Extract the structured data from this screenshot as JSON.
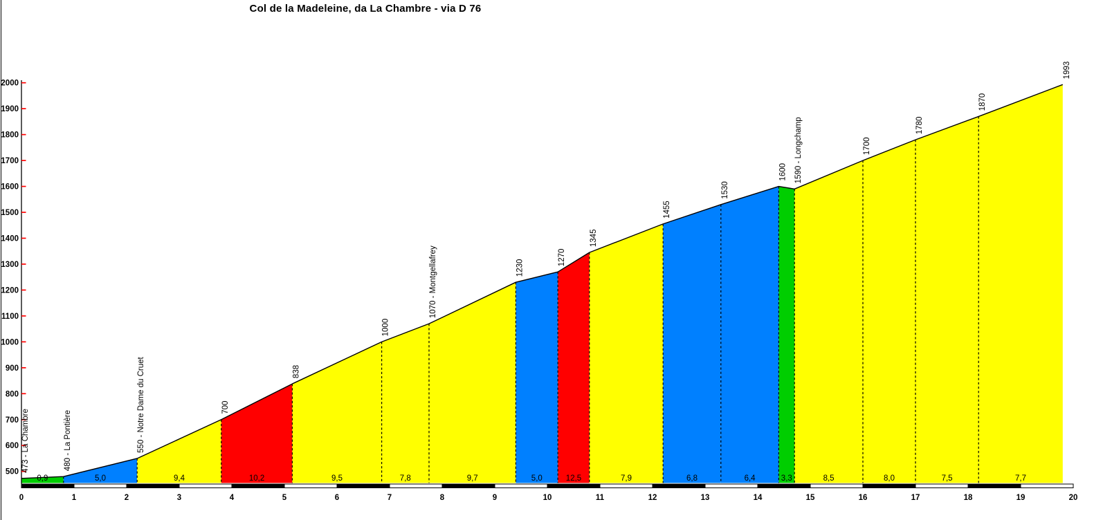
{
  "title": "Col de la Madeleine, da La Chambre - via D 76",
  "palette": {
    "green": "#00CE00",
    "blue": "#0080FF",
    "yellow": "#FFFF00",
    "red": "#FF0000",
    "axis_tick": "#FF0000",
    "line": "#000000",
    "background": "#FFFFFF",
    "bar_black": "#000000",
    "bar_white": "#FFFFFF"
  },
  "chart_data": {
    "type": "area",
    "title": "Col de la Madeleine, da La Chambre - via D 76",
    "xlabel": "",
    "ylabel": "",
    "xlim": [
      0,
      20
    ],
    "ylim": [
      500,
      2000
    ],
    "x_ticks": [
      0,
      1,
      2,
      3,
      4,
      5,
      6,
      7,
      8,
      9,
      10,
      11,
      12,
      13,
      14,
      15,
      16,
      17,
      18,
      19,
      20
    ],
    "y_ticks": [
      500,
      600,
      700,
      800,
      900,
      1000,
      1100,
      1200,
      1300,
      1400,
      1500,
      1600,
      1700,
      1800,
      1900,
      2000
    ],
    "grid": "off",
    "legend": "none",
    "points": [
      {
        "km": 0.0,
        "elev": 473,
        "label": "473 - La Chambre"
      },
      {
        "km": 0.8,
        "elev": 480,
        "label": "480 - La Pontière"
      },
      {
        "km": 2.2,
        "elev": 550,
        "label": "550 - Notre Dame du Cruet"
      },
      {
        "km": 3.8,
        "elev": 700,
        "label": "700"
      },
      {
        "km": 5.15,
        "elev": 838,
        "label": "838"
      },
      {
        "km": 6.85,
        "elev": 1000,
        "label": "1000"
      },
      {
        "km": 7.75,
        "elev": 1070,
        "label": "1070 - Montgellafrey"
      },
      {
        "km": 9.4,
        "elev": 1230,
        "label": "1230"
      },
      {
        "km": 10.2,
        "elev": 1270,
        "label": "1270"
      },
      {
        "km": 10.8,
        "elev": 1345,
        "label": "1345"
      },
      {
        "km": 12.2,
        "elev": 1455,
        "label": "1455"
      },
      {
        "km": 13.3,
        "elev": 1530,
        "label": "1530"
      },
      {
        "km": 14.4,
        "elev": 1600,
        "label": "1600"
      },
      {
        "km": 14.7,
        "elev": 1590,
        "label": "1590 - Longchamp"
      },
      {
        "km": 16.0,
        "elev": 1700,
        "label": "1700"
      },
      {
        "km": 17.0,
        "elev": 1780,
        "label": "1780"
      },
      {
        "km": 18.2,
        "elev": 1870,
        "label": "1870"
      },
      {
        "km": 19.8,
        "elev": 1993,
        "label": "1993"
      }
    ],
    "segments": [
      {
        "gradient": "0,9",
        "color": "green"
      },
      {
        "gradient": "5,0",
        "color": "blue"
      },
      {
        "gradient": "9,4",
        "color": "yellow"
      },
      {
        "gradient": "10,2",
        "color": "red"
      },
      {
        "gradient": "9,5",
        "color": "yellow"
      },
      {
        "gradient": "7,8",
        "color": "yellow"
      },
      {
        "gradient": "9,7",
        "color": "yellow"
      },
      {
        "gradient": "5,0",
        "color": "blue"
      },
      {
        "gradient": "12,5",
        "color": "red"
      },
      {
        "gradient": "7,9",
        "color": "yellow"
      },
      {
        "gradient": "6,8",
        "color": "blue"
      },
      {
        "gradient": "6,4",
        "color": "blue"
      },
      {
        "gradient": "3,3",
        "color": "green"
      },
      {
        "gradient": "8,5",
        "color": "yellow"
      },
      {
        "gradient": "8,0",
        "color": "yellow"
      },
      {
        "gradient": "7,5",
        "color": "yellow"
      },
      {
        "gradient": "7,7",
        "color": "yellow"
      }
    ],
    "km_bar": {
      "from": 0,
      "to": 20,
      "step": 1,
      "pattern": [
        "black",
        "white"
      ]
    }
  }
}
